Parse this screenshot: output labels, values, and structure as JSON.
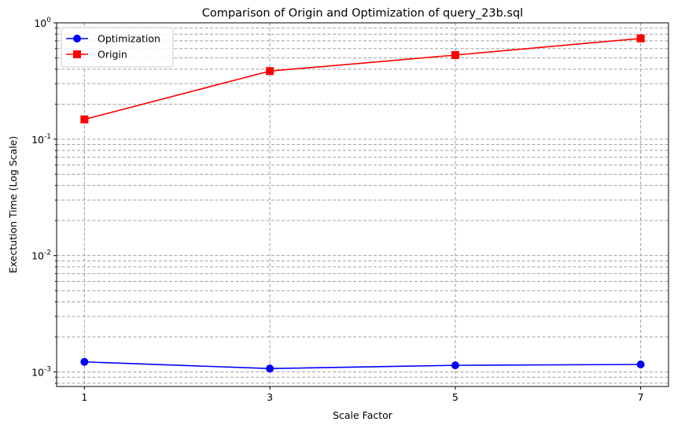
{
  "chart_data": {
    "type": "line",
    "title": "Comparison of Origin and Optimization of query_23b.sql",
    "xlabel": "Scale Factor",
    "ylabel": "Exectution Time (Log Scale)",
    "y_scale": "log",
    "grid": true,
    "legend_position": "upper left",
    "x": [
      1,
      3,
      5,
      7
    ],
    "x_tick_labels": [
      "1",
      "3",
      "5",
      "7"
    ],
    "y_tick_labels": [
      "10^-3",
      "10^-2",
      "10^-1",
      "10^0"
    ],
    "ylim": [
      0.00075,
      1.0
    ],
    "series": [
      {
        "name": "Optimization",
        "color": "#0000ff",
        "marker": "circle",
        "values": [
          0.00122,
          0.00107,
          0.00114,
          0.00116
        ]
      },
      {
        "name": "Origin",
        "color": "#ff0000",
        "marker": "square",
        "values": [
          0.148,
          0.385,
          0.528,
          0.735
        ]
      }
    ]
  }
}
